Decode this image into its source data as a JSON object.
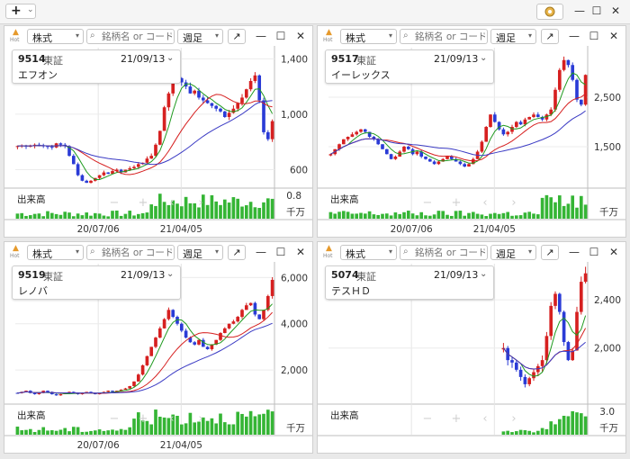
{
  "toolbar": {
    "add_label": "+",
    "gear_icon": "gear-icon",
    "controls": [
      "—",
      "☐",
      "✕"
    ]
  },
  "colors": {
    "up": "#d62020",
    "down": "#2a3bd6",
    "ma_short": "#1f9a1f",
    "ma_mid": "#d62020",
    "ma_long": "#3b3bc4",
    "volume": "#35b535"
  },
  "panels": [
    {
      "id": "p1",
      "code": "9514",
      "exchange": "東証",
      "date": "21/09/13",
      "name": "エフオン",
      "market": "株式",
      "period": "週足",
      "search_placeholder": "銘柄名 or コード",
      "volume_label": "出来高",
      "volume_unit": "千万",
      "volume_max": "0.8",
      "x_labels": [
        "20/07/06",
        "21/04/05"
      ],
      "y_ticks": [
        {
          "label": "1,400",
          "v": 1400
        },
        {
          "label": "1,000",
          "v": 1000
        },
        {
          "label": "600",
          "v": 600
        }
      ],
      "ylim": [
        480,
        1480
      ],
      "close": [
        770,
        775,
        768,
        772,
        780,
        775,
        770,
        765,
        760,
        790,
        780,
        770,
        700,
        640,
        560,
        520,
        505,
        520,
        540,
        560,
        580,
        570,
        590,
        600,
        580,
        600,
        610,
        620,
        640,
        650,
        680,
        700,
        780,
        880,
        1050,
        1150,
        1250,
        1260,
        1230,
        1200,
        1150,
        1170,
        1120,
        1100,
        1080,
        1060,
        1040,
        1020,
        980,
        1010,
        1040,
        1080,
        1120,
        1180,
        1240,
        1280,
        1100,
        870,
        820,
        950
      ]
    },
    {
      "id": "p2",
      "code": "9517",
      "exchange": "東証",
      "date": "21/09/13",
      "name": "イーレックス",
      "market": "株式",
      "period": "週足",
      "search_placeholder": "銘柄名 or コード",
      "volume_label": "出来高",
      "volume_unit": "千万",
      "volume_max": "",
      "x_labels": [
        "20/07/06",
        "21/04/05"
      ],
      "y_ticks": [
        {
          "label": "2,500",
          "v": 2500
        },
        {
          "label": "1,500",
          "v": 1500
        }
      ],
      "ylim": [
        700,
        3500
      ],
      "close": [
        1350,
        1450,
        1550,
        1650,
        1700,
        1750,
        1800,
        1850,
        1800,
        1700,
        1650,
        1550,
        1450,
        1350,
        1250,
        1300,
        1400,
        1500,
        1450,
        1350,
        1400,
        1300,
        1250,
        1200,
        1150,
        1200,
        1250,
        1300,
        1250,
        1200,
        1150,
        1100,
        1150,
        1250,
        1400,
        1600,
        1900,
        2150,
        2000,
        1850,
        1750,
        1800,
        1900,
        2000,
        1950,
        2050,
        2100,
        2150,
        2100,
        2050,
        2150,
        2250,
        2650,
        3050,
        3250,
        3150,
        2850,
        2450,
        2350,
        2950
      ]
    },
    {
      "id": "p3",
      "code": "9519",
      "exchange": "東証",
      "date": "21/09/13",
      "name": "レノバ",
      "market": "株式",
      "period": "週足",
      "search_placeholder": "銘柄名 or コード",
      "volume_label": "出来高",
      "volume_unit": "千万",
      "volume_max": "",
      "x_labels": [
        "20/07/06",
        "21/04/05"
      ],
      "y_ticks": [
        {
          "label": "6,000",
          "v": 6000
        },
        {
          "label": "4,000",
          "v": 4000
        },
        {
          "label": "2,000",
          "v": 2000
        }
      ],
      "ylim": [
        600,
        6600
      ],
      "close": [
        1000,
        1050,
        1100,
        1000,
        950,
        1000,
        1100,
        1050,
        950,
        900,
        950,
        1000,
        1050,
        1000,
        950,
        1000,
        1050,
        1000,
        950,
        1000,
        1050,
        1100,
        1050,
        1100,
        1150,
        1200,
        1300,
        1500,
        1800,
        2200,
        2600,
        3000,
        3400,
        3800,
        4200,
        4600,
        4300,
        4000,
        3700,
        3400,
        3200,
        3100,
        3300,
        3000,
        2900,
        3100,
        3300,
        3600,
        3800,
        4000,
        4100,
        4300,
        4600,
        4800,
        4900,
        4400,
        4200,
        4600,
        5200,
        5900
      ]
    },
    {
      "id": "p4",
      "code": "5074",
      "exchange": "東証",
      "date": "21/09/13",
      "name": "テスＨＤ",
      "market": "株式",
      "period": "週足",
      "search_placeholder": "銘柄名 or コード",
      "volume_label": "出来高",
      "volume_unit": "千万",
      "volume_max": "3.0",
      "x_labels": [],
      "y_ticks": [
        {
          "label": "2,400",
          "v": 2400
        },
        {
          "label": "2,000",
          "v": 2000
        }
      ],
      "ylim": [
        1550,
        2700
      ],
      "start_index": 40,
      "close": [
        null,
        null,
        null,
        null,
        null,
        null,
        null,
        null,
        null,
        null,
        null,
        null,
        null,
        null,
        null,
        null,
        null,
        null,
        null,
        null,
        null,
        null,
        null,
        null,
        null,
        null,
        null,
        null,
        null,
        null,
        null,
        null,
        null,
        null,
        null,
        null,
        null,
        null,
        null,
        null,
        2000,
        1900,
        1880,
        1820,
        1760,
        1700,
        1750,
        1800,
        1850,
        1900,
        2100,
        2350,
        2450,
        2300,
        2050,
        1900,
        1980,
        2300,
        2550,
        2620
      ]
    }
  ]
}
